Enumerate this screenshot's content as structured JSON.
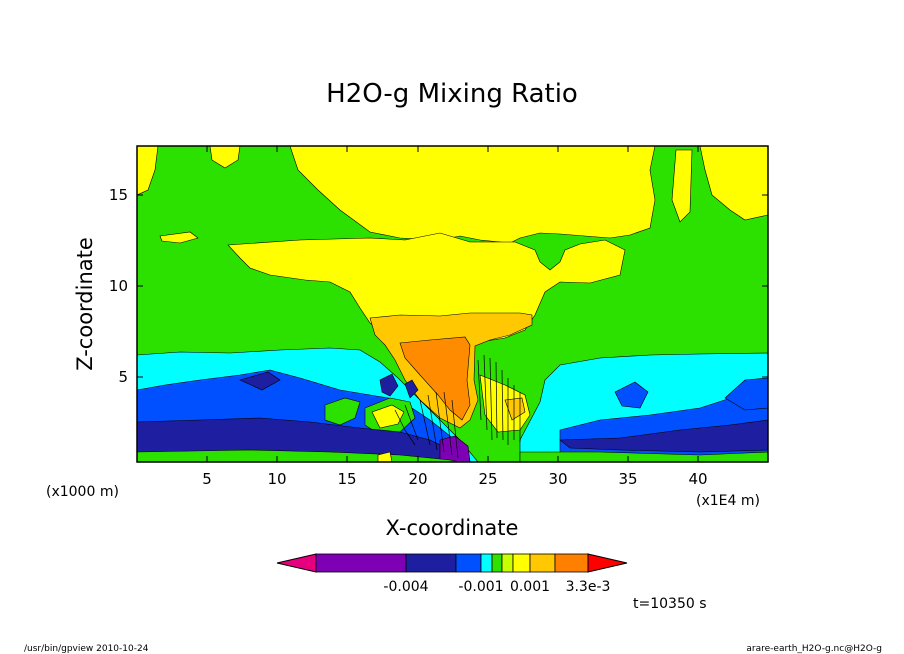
{
  "chart_data": {
    "type": "heatmap",
    "title": "H2O-g Mixing Ratio",
    "xlabel": "X-coordinate",
    "ylabel": "Z-coordinate",
    "x_unit_left": "(x1000 m)",
    "x_unit_right": "(x1E4 m)",
    "xticks": [
      "5",
      "10",
      "15",
      "20",
      "25",
      "30",
      "35",
      "40"
    ],
    "yticks": [
      "5",
      "10",
      "15"
    ],
    "xlim": [
      0,
      45
    ],
    "ylim": [
      0.5,
      17.8
    ],
    "colorbar": {
      "labels": [
        "-0.004",
        "-0.001",
        "0.001",
        "3.3e-3"
      ],
      "colors": [
        "#e6007f",
        "#7d00b4",
        "#1e1ea0",
        "#0050ff",
        "#00ffff",
        "#30e000",
        "#ffff00",
        "#ffc800",
        "#ff8000",
        "#ff0000"
      ]
    },
    "fill_colors": {
      "green": "#2ce000",
      "yellow": "#ffff00",
      "gold": "#ffc800",
      "orange": "#ff8c00",
      "cyan": "#00ffff",
      "blue": "#0050ff",
      "navy": "#1e1ea0",
      "purple": "#7d00b4"
    }
  },
  "time_label": "t=10350 s",
  "footer": {
    "left": "/usr/bin/gpview  2010-10-24",
    "right": "arare-earth_H2O-g.nc@H2O-g"
  }
}
